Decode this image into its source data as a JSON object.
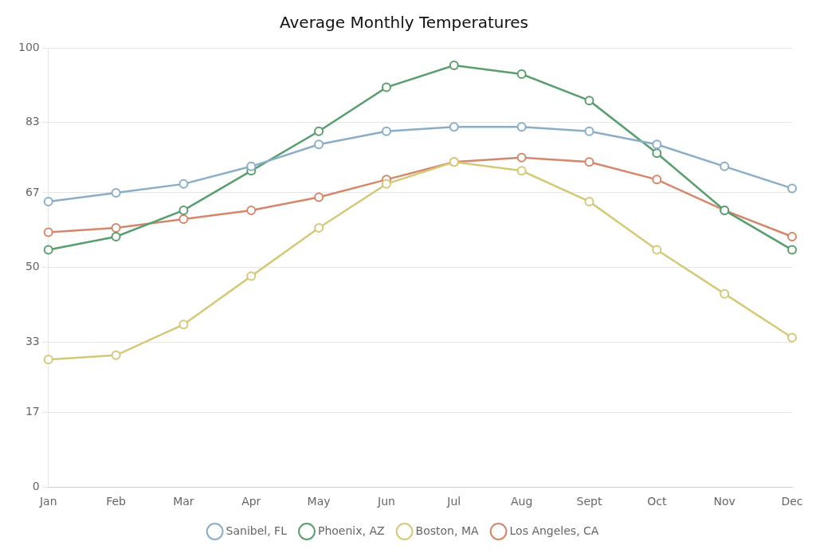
{
  "chart_data": {
    "type": "line",
    "title": "Average Monthly Temperatures",
    "categories": [
      "Jan",
      "Feb",
      "Mar",
      "Apr",
      "May",
      "Jun",
      "Jul",
      "Aug",
      "Sept",
      "Oct",
      "Nov",
      "Dec"
    ],
    "series": [
      {
        "name": "Sanibel, FL",
        "color": "#8aaec8",
        "values": [
          65,
          67,
          69,
          73,
          78,
          81,
          82,
          82,
          81,
          78,
          73,
          68
        ]
      },
      {
        "name": "Phoenix, AZ",
        "color": "#5a9e6f",
        "values": [
          54,
          57,
          63,
          72,
          81,
          91,
          96,
          94,
          88,
          76,
          63,
          54
        ]
      },
      {
        "name": "Boston, MA",
        "color": "#d4c97a",
        "values": [
          29,
          30,
          37,
          48,
          59,
          69,
          74,
          72,
          65,
          54,
          44,
          34
        ]
      },
      {
        "name": "Los Angeles, CA",
        "color": "#d4876a",
        "values": [
          58,
          59,
          61,
          63,
          66,
          70,
          74,
          75,
          74,
          70,
          63,
          57
        ]
      }
    ],
    "ylim": [
      0,
      100
    ],
    "yticks": [
      0,
      17,
      33,
      50,
      67,
      83,
      100
    ],
    "grid": true,
    "legend": "bottom",
    "marker": "circle"
  }
}
